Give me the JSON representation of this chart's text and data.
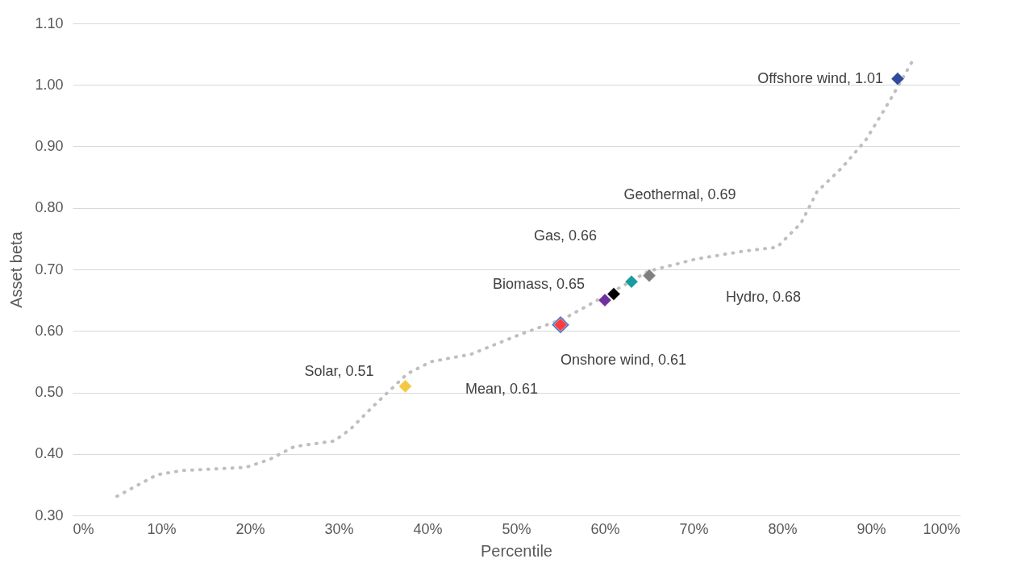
{
  "chart_data": {
    "type": "scatter",
    "xlabel": "Percentile",
    "ylabel": "Asset beta",
    "xlim": [
      0,
      100
    ],
    "ylim": [
      0.3,
      1.1
    ],
    "xticks": [
      {
        "value": 0,
        "label": "0%"
      },
      {
        "value": 10,
        "label": "10%"
      },
      {
        "value": 20,
        "label": "20%"
      },
      {
        "value": 30,
        "label": "30%"
      },
      {
        "value": 40,
        "label": "40%"
      },
      {
        "value": 50,
        "label": "50%"
      },
      {
        "value": 60,
        "label": "60%"
      },
      {
        "value": 70,
        "label": "70%"
      },
      {
        "value": 80,
        "label": "80%"
      },
      {
        "value": 90,
        "label": "90%"
      },
      {
        "value": 100,
        "label": "100%"
      }
    ],
    "yticks": [
      {
        "value": 0.3,
        "label": "0.30"
      },
      {
        "value": 0.4,
        "label": "0.40"
      },
      {
        "value": 0.5,
        "label": "0.50"
      },
      {
        "value": 0.6,
        "label": "0.60"
      },
      {
        "value": 0.7,
        "label": "0.70"
      },
      {
        "value": 0.8,
        "label": "0.80"
      },
      {
        "value": 0.9,
        "label": "0.90"
      },
      {
        "value": 1.0,
        "label": "1.00"
      },
      {
        "value": 1.1,
        "label": "1.10"
      }
    ],
    "grid": "y",
    "marker": "diamond",
    "series": [
      {
        "type": "line",
        "line_style": "dotted",
        "marker": "none",
        "color": "#bfbfbf",
        "x": [
          5,
          9.5,
          12.3,
          19.5,
          22.2,
          25,
          29.5,
          31.3,
          34,
          37.7,
          40.4,
          44.9,
          50.4,
          55.4,
          60.3,
          64.9,
          70.3,
          75.8,
          79.4,
          82.1,
          83.9,
          86.7,
          89.4,
          92.1,
          94.8
        ],
        "values": [
          0.331,
          0.366,
          0.373,
          0.378,
          0.391,
          0.412,
          0.421,
          0.44,
          0.479,
          0.53,
          0.55,
          0.562,
          0.594,
          0.62,
          0.659,
          0.697,
          0.717,
          0.73,
          0.736,
          0.775,
          0.826,
          0.865,
          0.91,
          0.974,
          1.042
        ]
      },
      {
        "name": "Offshore wind,",
        "color": "#2f4b9a",
        "x": [
          93
        ],
        "values": [
          1.01
        ],
        "value_labels": [
          "1.01"
        ]
      },
      {
        "name": "Geothermal,",
        "color": "#7f7f7f",
        "x": [
          65
        ],
        "values": [
          0.69
        ],
        "value_labels": [
          "0.69"
        ]
      },
      {
        "name": "Gas,",
        "color": "#000000",
        "x": [
          61
        ],
        "values": [
          0.66
        ],
        "value_labels": [
          "0.66"
        ]
      },
      {
        "name": "Biomass,",
        "color": "#7030a0",
        "x": [
          60
        ],
        "values": [
          0.65
        ],
        "value_labels": [
          "0.65"
        ]
      },
      {
        "name": "Hydro,",
        "color": "#1a9ba0",
        "x": [
          63
        ],
        "values": [
          0.68
        ],
        "value_labels": [
          "0.68"
        ]
      },
      {
        "name": "Onshore wind,",
        "color": "#4472c4",
        "x": [
          55
        ],
        "values": [
          0.61
        ],
        "value_labels": [
          "0.61"
        ]
      },
      {
        "name": "Mean,",
        "color": "#ff3b3b",
        "x": [
          55
        ],
        "values": [
          0.61
        ],
        "value_labels": [
          "0.61"
        ]
      },
      {
        "name": "Solar,",
        "color": "#f5c842",
        "x": [
          37.5
        ],
        "values": [
          0.51
        ],
        "value_labels": [
          "0.51"
        ]
      }
    ]
  }
}
